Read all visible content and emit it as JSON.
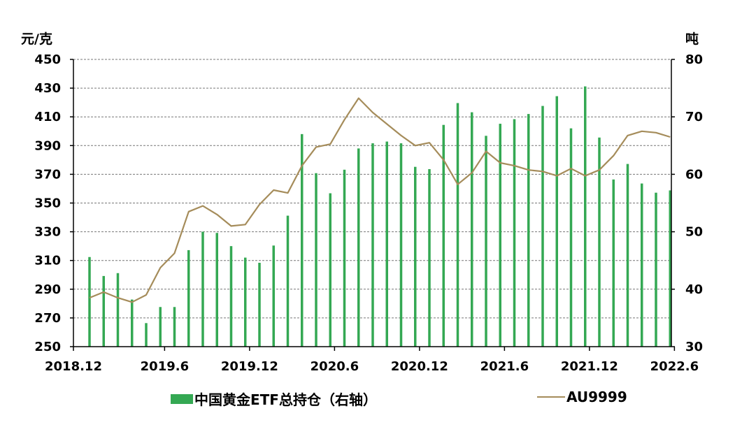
{
  "chart_data": {
    "type": "bar+line",
    "left_axis": {
      "unit": "元/克",
      "range": [
        250,
        450
      ],
      "ticks": [
        "450",
        "430",
        "410",
        "390",
        "370",
        "350",
        "330",
        "310",
        "290",
        "270",
        "250"
      ]
    },
    "right_axis": {
      "unit": "吨",
      "range": [
        30,
        80
      ],
      "ticks": [
        "80",
        "70",
        "60",
        "50",
        "40",
        "30"
      ]
    },
    "x_tick_labels": [
      "2018.12",
      "2019.6",
      "2019.12",
      "2020.6",
      "2020.12",
      "2021.6",
      "2021.12",
      "2022.6"
    ],
    "grid": "horizontal-dashed",
    "legend_position": "bottom",
    "series": [
      {
        "name": "中国黄金ETF总持仓（右轴）",
        "type": "bar",
        "axis": "right",
        "color": "#34a853",
        "values": [
          45.6,
          42.3,
          42.8,
          38.2,
          34.1,
          36.9,
          36.9,
          46.8,
          50.0,
          49.8,
          47.5,
          45.5,
          44.6,
          47.6,
          52.8,
          67.0,
          60.2,
          56.7,
          60.8,
          64.5,
          65.4,
          65.7,
          65.4,
          61.3,
          60.9,
          68.6,
          72.4,
          70.8,
          66.7,
          68.8,
          69.6,
          70.5,
          71.9,
          73.6,
          68.0,
          75.3,
          66.4,
          59.1,
          61.8,
          58.4,
          56.8,
          57.2
        ]
      },
      {
        "name": "AU9999",
        "type": "line",
        "axis": "left",
        "color": "#a58c5a",
        "values": [
          284,
          288,
          284,
          281,
          286,
          305,
          315,
          344,
          348,
          342,
          334,
          335,
          349,
          359,
          357,
          376,
          389,
          391,
          408,
          423,
          413,
          405,
          397,
          390,
          392,
          380,
          363,
          371,
          386,
          378,
          376,
          373,
          372,
          369,
          374,
          369,
          373,
          383,
          397,
          400,
          399,
          396
        ]
      }
    ]
  }
}
